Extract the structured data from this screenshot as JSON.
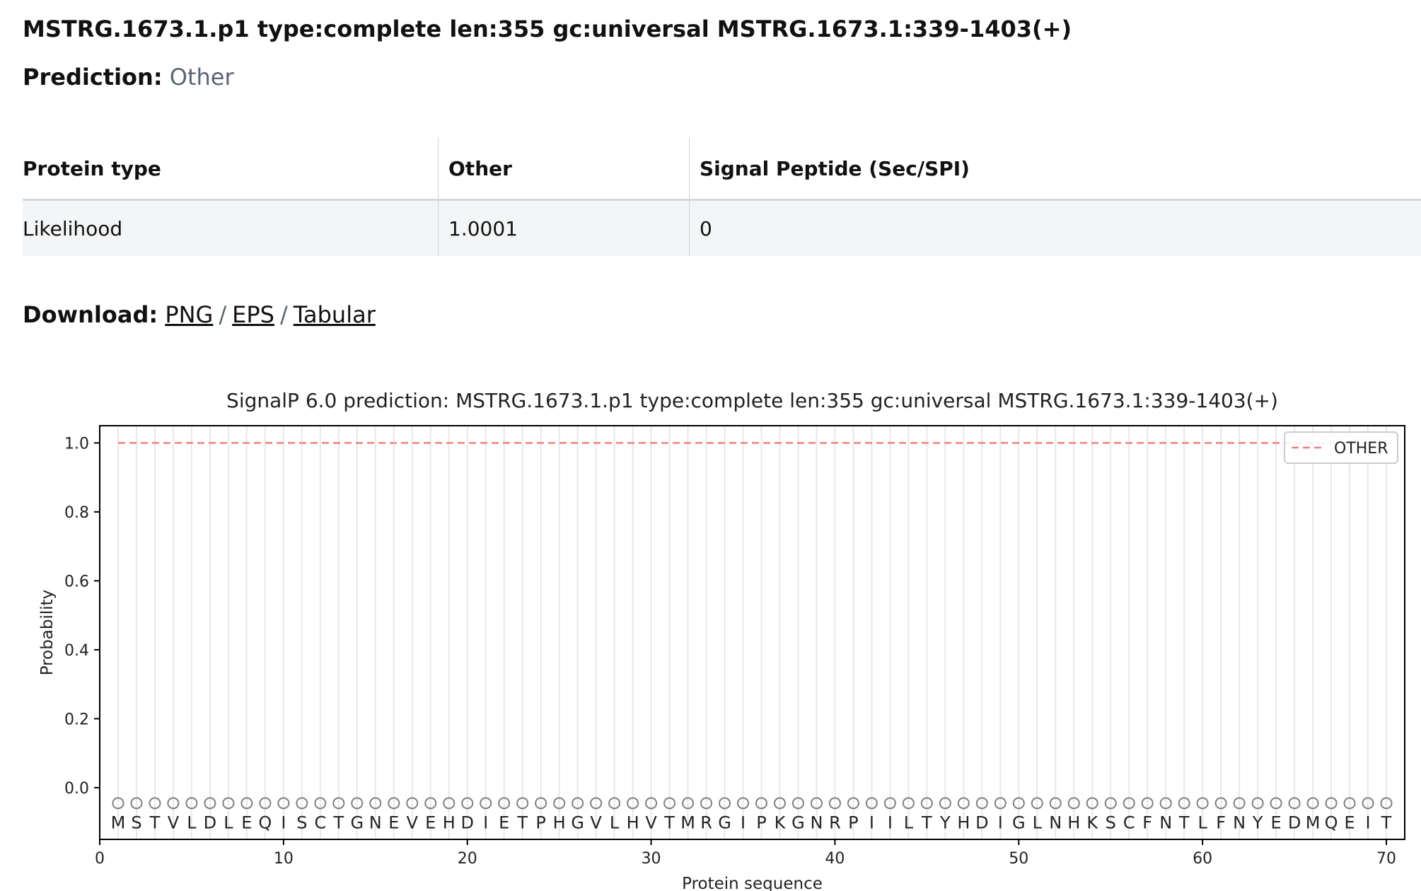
{
  "header": {
    "title": "MSTRG.1673.1.p1 type:complete len:355 gc:universal MSTRG.1673.1:339-1403(+)"
  },
  "prediction": {
    "label": "Prediction:",
    "value": "Other"
  },
  "table": {
    "headers": [
      "Protein type",
      "Other",
      "Signal Peptide (Sec/SPI)"
    ],
    "row": [
      "Likelihood",
      "1.0001",
      "0"
    ]
  },
  "download": {
    "label": "Download:",
    "links": [
      "PNG",
      "EPS",
      "Tabular"
    ],
    "separator": "/"
  },
  "chart_data": {
    "type": "line",
    "title": "SignalP 6.0 prediction: MSTRG.1673.1.p1 type:complete len:355 gc:universal MSTRG.1673.1:339-1403(+)",
    "xlabel": "Protein sequence",
    "ylabel": "Probability",
    "xlim": [
      0,
      71
    ],
    "ylim": [
      -0.15,
      1.05
    ],
    "xticks": [
      0,
      10,
      20,
      30,
      40,
      50,
      60,
      70
    ],
    "yticks": [
      0.0,
      0.2,
      0.4,
      0.6,
      0.8,
      1.0
    ],
    "ytick_labels": [
      "0.0",
      "0.2",
      "0.4",
      "0.6",
      "0.8",
      "1.0"
    ],
    "legend": {
      "position": "top-right",
      "entries": [
        "OTHER"
      ]
    },
    "series": [
      {
        "name": "OTHER",
        "style": "dashed",
        "color": "#f08080",
        "x_start": 1,
        "x_end": 70,
        "value": 1.0
      }
    ],
    "sequence": [
      "M",
      "S",
      "T",
      "V",
      "L",
      "D",
      "L",
      "E",
      "Q",
      "I",
      "S",
      "C",
      "T",
      "G",
      "N",
      "E",
      "V",
      "E",
      "H",
      "D",
      "I",
      "E",
      "T",
      "P",
      "H",
      "G",
      "V",
      "L",
      "H",
      "V",
      "T",
      "M",
      "R",
      "G",
      "I",
      "P",
      "K",
      "G",
      "N",
      "R",
      "P",
      "I",
      "I",
      "L",
      "T",
      "Y",
      "H",
      "D",
      "I",
      "G",
      "L",
      "N",
      "H",
      "K",
      "S",
      "C",
      "F",
      "N",
      "T",
      "L",
      "F",
      "N",
      "Y",
      "E",
      "D",
      "M",
      "Q",
      "E",
      "I",
      "T"
    ],
    "grid": "vertical",
    "colors": {
      "other": "#f08080",
      "axis": "#000000",
      "grid": "#e8e8e8",
      "marker": "#808080"
    }
  }
}
